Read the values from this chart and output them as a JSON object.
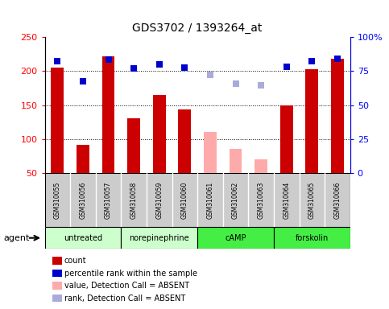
{
  "title": "GDS3702 / 1393264_at",
  "samples": [
    "GSM310055",
    "GSM310056",
    "GSM310057",
    "GSM310058",
    "GSM310059",
    "GSM310060",
    "GSM310061",
    "GSM310062",
    "GSM310063",
    "GSM310064",
    "GSM310065",
    "GSM310066"
  ],
  "bar_values": [
    205,
    91,
    222,
    131,
    165,
    143,
    111,
    85,
    70,
    150,
    203,
    218
  ],
  "bar_absent": [
    false,
    false,
    false,
    false,
    false,
    false,
    true,
    true,
    true,
    false,
    false,
    false
  ],
  "rank_values": [
    215,
    185,
    217,
    204,
    210,
    205,
    195,
    182,
    179,
    206,
    214,
    218
  ],
  "rank_absent": [
    false,
    false,
    false,
    false,
    false,
    false,
    true,
    true,
    true,
    false,
    false,
    false
  ],
  "bar_color_present": "#cc0000",
  "bar_color_absent": "#ffaaaa",
  "rank_color_present": "#0000cc",
  "rank_color_absent": "#aaaadd",
  "ylim_left": [
    50,
    250
  ],
  "ylim_right": [
    0,
    100
  ],
  "yticks_left": [
    50,
    100,
    150,
    200,
    250
  ],
  "yticks_right": [
    0,
    25,
    50,
    75,
    100
  ],
  "ytick_labels_right": [
    "0",
    "25",
    "50",
    "75",
    "100%"
  ],
  "groups": [
    {
      "label": "untreated",
      "start": 0,
      "end": 2,
      "color": "#ccffcc"
    },
    {
      "label": "norepinephrine",
      "start": 3,
      "end": 5,
      "color": "#ccffcc"
    },
    {
      "label": "cAMP",
      "start": 6,
      "end": 8,
      "color": "#44ee44"
    },
    {
      "label": "forskolin",
      "start": 9,
      "end": 11,
      "color": "#44ee44"
    }
  ],
  "agent_label": "agent",
  "legend_items": [
    {
      "label": "count",
      "color": "#cc0000"
    },
    {
      "label": "percentile rank within the sample",
      "color": "#0000cc"
    },
    {
      "label": "value, Detection Call = ABSENT",
      "color": "#ffaaaa"
    },
    {
      "label": "rank, Detection Call = ABSENT",
      "color": "#aaaadd"
    }
  ],
  "sample_box_color": "#cccccc",
  "group_border_color": "#888888",
  "bar_width": 0.5,
  "rank_marker_size": 28
}
